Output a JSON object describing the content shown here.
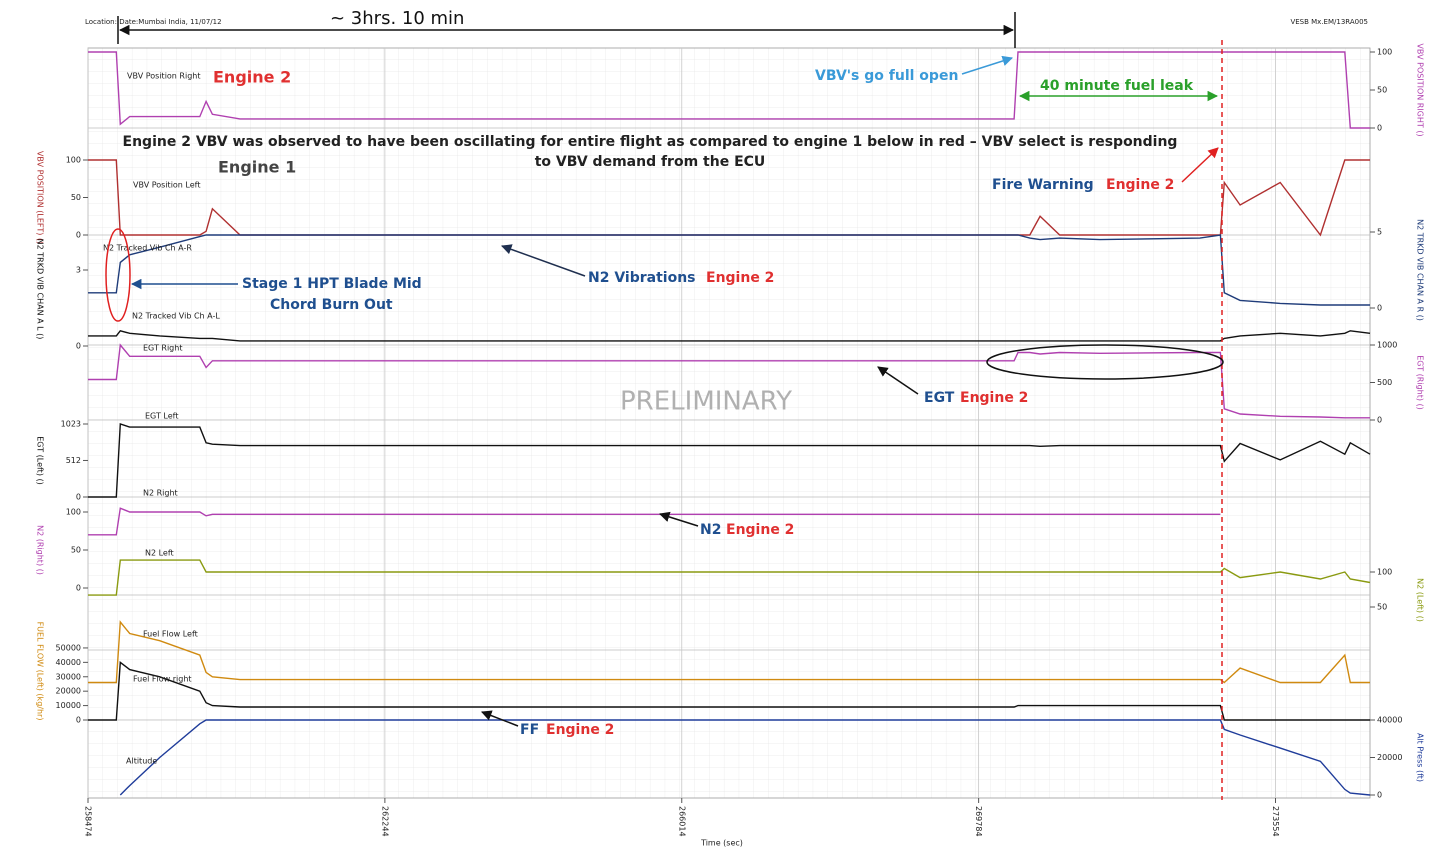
{
  "chart_data": {
    "type": "line",
    "xlabel": "Time (sec)",
    "x": [
      0,
      360,
      410,
      530,
      910,
      1420,
      1500,
      1580,
      1930,
      3960,
      5230,
      7770,
      10310,
      11760,
      11810,
      11960,
      12090,
      12340,
      12850,
      14120,
      14380,
      14430,
      14630,
      15140,
      15650,
      15960,
      16030,
      16280
    ],
    "xlim": [
      0,
      16280
    ],
    "xticks": [
      {
        "value": 0,
        "label": "258474"
      },
      {
        "value": 3770,
        "label": "262244"
      },
      {
        "value": 7540,
        "label": "266014"
      },
      {
        "value": 11310,
        "label": "269784"
      },
      {
        "value": 15080,
        "label": "273554"
      }
    ],
    "grid": true,
    "panels": [
      {
        "y2lim": [
          0,
          100
        ],
        "y2ticks": [
          0,
          50,
          100
        ],
        "y2label": "VBV POSITION RIGHT ()",
        "series": [
          {
            "name": "VBV Position Right",
            "color": "#b040b0",
            "axis": "y2",
            "values": [
              100,
              100,
              5,
              15,
              15,
              15,
              35,
              18,
              12,
              12,
              12,
              12,
              12,
              12,
              100,
              100,
              100,
              100,
              100,
              100,
              100,
              100,
              100,
              100,
              100,
              100,
              0,
              0
            ]
          }
        ]
      },
      {
        "ylim": [
          0,
          100
        ],
        "yticks": [
          0,
          50,
          100
        ],
        "ylabel": "VBV POSITION (LEFT) ()",
        "series": [
          {
            "name": "VBV Position Left",
            "color": "#b03030",
            "values": [
              100,
              100,
              0,
              0,
              0,
              0,
              5,
              35,
              0,
              0,
              0,
              0,
              0,
              0,
              0,
              0,
              25,
              0,
              0,
              0,
              0,
              70,
              40,
              70,
              0,
              100,
              100,
              100
            ]
          }
        ]
      },
      {
        "ylim": [
          0,
          4.5
        ],
        "yticks": [
          0,
          3
        ],
        "ylabel": "N2 TRKD VIB CHAN A L ()",
        "y2lim": [
          0,
          5
        ],
        "y2ticks": [
          0,
          5
        ],
        "y2label": "N2 TRKD VIB CHAN A R ()",
        "series": [
          {
            "name": "N2 Tracked Vib Ch A-R",
            "color": "#1f3c7a",
            "axis": "y2",
            "values": [
              1,
              1,
              3,
              3.5,
              4,
              4.7,
              4.8,
              4.8,
              4.8,
              4.8,
              4.8,
              4.8,
              4.8,
              4.8,
              4.8,
              4.6,
              4.5,
              4.6,
              4.5,
              4.6,
              4.8,
              1,
              0.5,
              0.3,
              0.2,
              0.2,
              0.2,
              0.2
            ]
          },
          {
            "name": "N2 Tracked Vib Ch A-L",
            "color": "#111111",
            "values": [
              0.4,
              0.4,
              0.6,
              0.5,
              0.4,
              0.3,
              0.3,
              0.3,
              0.2,
              0.2,
              0.2,
              0.2,
              0.2,
              0.2,
              0.2,
              0.2,
              0.2,
              0.2,
              0.2,
              0.2,
              0.2,
              0.3,
              0.4,
              0.5,
              0.4,
              0.5,
              0.6,
              0.5
            ]
          }
        ]
      },
      {
        "y2lim": [
          0,
          1000
        ],
        "y2ticks": [
          0,
          500,
          1000
        ],
        "y2label": "EGT (Right) ()",
        "series": [
          {
            "name": "EGT Right",
            "color": "#b040b0",
            "axis": "y2",
            "values": [
              540,
              540,
              1000,
              850,
              850,
              850,
              700,
              790,
              790,
              790,
              790,
              790,
              790,
              790,
              900,
              900,
              880,
              900,
              890,
              900,
              900,
              150,
              80,
              50,
              40,
              30,
              30,
              30
            ]
          }
        ]
      },
      {
        "ylim": [
          0,
          1023
        ],
        "yticks": [
          0,
          512,
          1023
        ],
        "ylabel": "EGT (Left) ()",
        "series": [
          {
            "name": "EGT Left",
            "color": "#111111",
            "values": [
              0,
              0,
              1023,
              980,
              980,
              980,
              760,
              740,
              720,
              720,
              720,
              720,
              720,
              720,
              720,
              720,
              710,
              720,
              720,
              720,
              720,
              500,
              750,
              520,
              780,
              600,
              760,
              600
            ]
          }
        ]
      },
      {
        "ylim": [
          0,
          100
        ],
        "yticks": [
          0,
          50,
          100
        ],
        "ylabel": "N2 (Right) ()",
        "series": [
          {
            "name": "N2 Right",
            "color": "#b040b0",
            "values": [
              70,
              70,
              105,
              100,
              100,
              100,
              95,
              97,
              97,
              97,
              97,
              97,
              97,
              97,
              97,
              97,
              97,
              97,
              97,
              97,
              97,
              null,
              null,
              null,
              null,
              null,
              null,
              null
            ]
          }
        ]
      },
      {
        "y2lim": [
          0,
          120
        ],
        "y2ticks": [
          50,
          100
        ],
        "y2label": "N2 (Left) ()",
        "series": [
          {
            "name": "N2 Left",
            "color": "#8a9a10",
            "axis": "y2",
            "values": [
              67,
              67,
              117,
              117,
              117,
              117,
              100,
              100,
              100,
              100,
              100,
              100,
              100,
              100,
              100,
              100,
              100,
              100,
              100,
              100,
              100,
              105,
              92,
              100,
              90,
              100,
              90,
              85
            ]
          }
        ]
      },
      {
        "ylim": [
          0,
          68000
        ],
        "yticks": [
          0,
          10000,
          20000,
          30000,
          40000,
          50000
        ],
        "ylabel": "FUEL FLOW (Left) (kg/hr)",
        "series": [
          {
            "name": "Fuel Flow Left",
            "color": "#d08a10",
            "values": [
              26000,
              26000,
              68000,
              60000,
              55000,
              45000,
              33000,
              30000,
              28000,
              28000,
              28000,
              28000,
              28000,
              28000,
              28000,
              28000,
              28000,
              28000,
              28000,
              28000,
              28000,
              26000,
              36000,
              26000,
              26000,
              45000,
              26000,
              26000
            ]
          },
          {
            "name": "Fuel Flow right",
            "color": "#111111",
            "values": [
              0,
              0,
              40000,
              35000,
              30000,
              20000,
              12000,
              10000,
              9000,
              9000,
              9000,
              9000,
              9000,
              9000,
              10000,
              10000,
              10000,
              10000,
              10000,
              10000,
              10000,
              0,
              0,
              0,
              0,
              0,
              0,
              0
            ]
          }
        ]
      },
      {
        "y2lim": [
          0,
          40000
        ],
        "y2ticks": [
          0,
          20000,
          40000
        ],
        "y2label": "Alt Press (ft)",
        "series": [
          {
            "name": "Altitude",
            "color": "#1f3c9a",
            "axis": "y2",
            "values": [
              null,
              null,
              0,
              5000,
              20000,
              38000,
              40000,
              40000,
              40000,
              40000,
              40000,
              40000,
              40000,
              40000,
              40000,
              40000,
              40000,
              40000,
              40000,
              40000,
              40000,
              35000,
              32000,
              25000,
              18000,
              3000,
              1000,
              0
            ]
          }
        ]
      }
    ],
    "annotations": [
      {
        "text": "Location: Date:Mumbai India, 11/07/12",
        "color": "#222222"
      },
      {
        "text": "~ 3hrs. 10 min",
        "color": "#111111"
      },
      {
        "text": "VESB Mx.EM/13RA005",
        "color": "#222222"
      },
      {
        "text": "Engine 2",
        "color": "#e03030"
      },
      {
        "text": "VBV's go full open",
        "color": "#3a9ad8"
      },
      {
        "text": "40 minute fuel leak",
        "color": "#2aa02a"
      },
      {
        "text": "Engine 2 VBV was observed to have been oscillating for entire flight as compared to engine 1 below in red –  VBV select is responding",
        "color": "#222222"
      },
      {
        "text": "to VBV demand from the ECU",
        "color": "#222222"
      },
      {
        "text": "Engine 1",
        "color": "#444444"
      },
      {
        "text": "Fire Warning",
        "color": "#1f4f8f"
      },
      {
        "text": "Engine 2",
        "color": "#e03030"
      },
      {
        "text": "Stage 1 HPT Blade Mid",
        "color": "#1f4f8f"
      },
      {
        "text": "Chord Burn Out",
        "color": "#1f4f8f"
      },
      {
        "text": "N2 Vibrations",
        "color": "#1f4f8f"
      },
      {
        "text": "Engine 2",
        "color": "#e03030"
      },
      {
        "text": "PRELIMINARY",
        "color": "#b0b0b0"
      },
      {
        "text": "EGT",
        "color": "#1f4f8f"
      },
      {
        "text": "Engine 2",
        "color": "#e03030"
      },
      {
        "text": "N2",
        "color": "#1f4f8f"
      },
      {
        "text": "Engine 2",
        "color": "#e03030"
      },
      {
        "text": "FF",
        "color": "#1f4f8f"
      },
      {
        "text": "Engine 2",
        "color": "#e03030"
      }
    ]
  }
}
